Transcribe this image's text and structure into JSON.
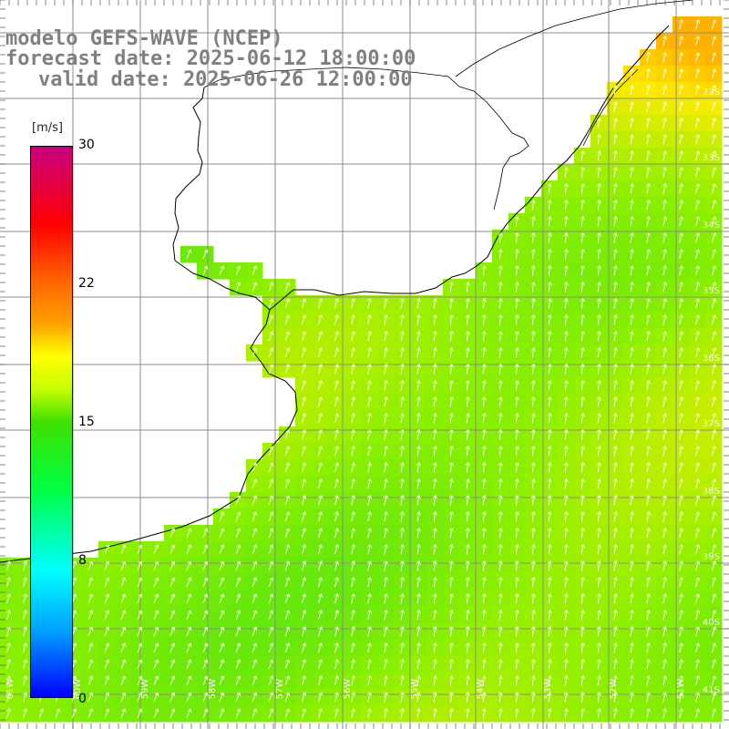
{
  "title": {
    "model": "modelo GEFS-WAVE (NCEP)",
    "forecast": "forecast date: 2025-06-12 18:00:00",
    "valid": "valid date: 2025-06-26 12:00:00"
  },
  "colorbar": {
    "unit": "[m/s]",
    "ticks": [
      "30",
      "22",
      "15",
      "8",
      "0"
    ],
    "colors": [
      "#0000ff",
      "#00ffff",
      "#00ff40",
      "#40e000",
      "#ffff00",
      "#ff6000",
      "#ff0000",
      "#c80080"
    ]
  },
  "lat_labels": [
    "32S",
    "33S",
    "34S",
    "35S",
    "36S",
    "37S",
    "38S",
    "39S",
    "40S",
    "41S"
  ],
  "lon_labels": [
    "61W",
    "60W",
    "59W",
    "58W",
    "57W",
    "56W",
    "55W",
    "54W",
    "53W",
    "52W",
    "51W"
  ],
  "colors": {
    "land": "#ffffff",
    "grid": "#8c8c8c",
    "coast": "#000000",
    "arrows": "#ffffff",
    "title": "#808080"
  }
}
